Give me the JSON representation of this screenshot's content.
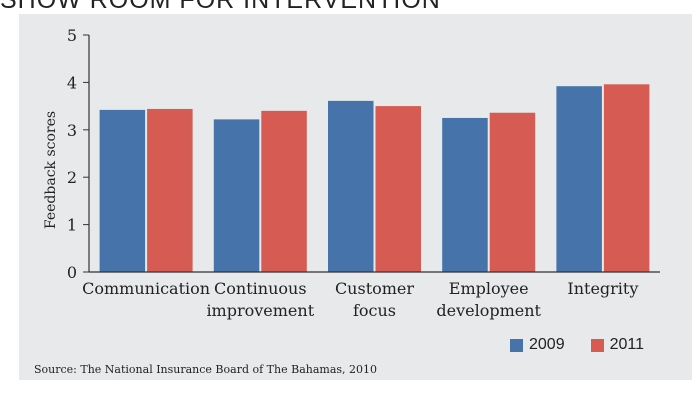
{
  "page": {
    "title": "SHOW ROOM FOR INTERVENTION",
    "source": "Source: The National Insurance Board of The Bahamas, 2010"
  },
  "colors": {
    "panel": "#e8e9eb",
    "axis": "#333333"
  },
  "chart_data": {
    "type": "bar",
    "ylabel": "Feedback scores",
    "xlabel": "",
    "ylim": [
      0,
      5
    ],
    "yticks": [
      0,
      1,
      2,
      3,
      4,
      5
    ],
    "grid": false,
    "legend_position": "bottom-right",
    "categories": [
      [
        "Communication"
      ],
      [
        "Continuous",
        "improvement"
      ],
      [
        "Customer",
        "focus"
      ],
      [
        "Employee",
        "development"
      ],
      [
        "Integrity"
      ]
    ],
    "series": [
      {
        "name": "2009",
        "color": "#4573aa",
        "values": [
          3.42,
          3.22,
          3.61,
          3.25,
          3.92
        ]
      },
      {
        "name": "2011",
        "color": "#d65b53",
        "values": [
          3.44,
          3.4,
          3.5,
          3.36,
          3.96
        ]
      }
    ]
  }
}
